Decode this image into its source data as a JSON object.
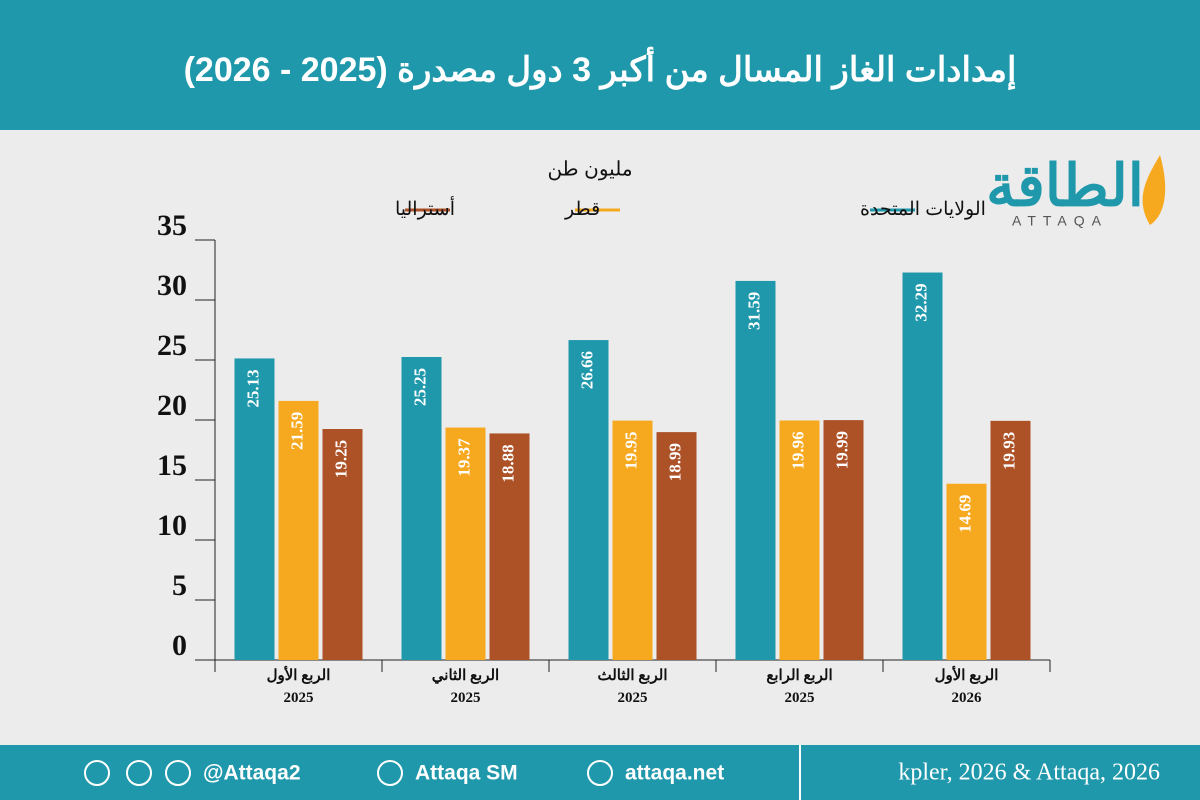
{
  "header": {
    "title": "إمدادات الغاز المسال من أكبر 3 دول مصدرة (2025 - 2026)"
  },
  "logo": {
    "name": "الطاقة",
    "latin": "ATTAQA"
  },
  "chart_data": {
    "type": "bar",
    "y_label": "مليون طن",
    "categories": [
      "الربع الأول\n2025",
      "الربع الثاني\n2025",
      "الربع الثالث\n2025",
      "الربع الرابع\n2025",
      "الربع الأول\n2026"
    ],
    "series": [
      {
        "name": "الولايات المتحدة",
        "color": "#1f98ab",
        "values": [
          25.13,
          25.25,
          26.66,
          31.59,
          32.29
        ]
      },
      {
        "name": "قطر",
        "color": "#f6a91f",
        "values": [
          21.59,
          19.37,
          19.95,
          19.96,
          14.69
        ]
      },
      {
        "name": "أستراليا",
        "color": "#ad5127",
        "values": [
          19.25,
          18.88,
          18.99,
          19.99,
          19.93
        ]
      }
    ],
    "ylim": [
      0,
      35
    ],
    "yticks": [
      0,
      5,
      10,
      15,
      20,
      25,
      30,
      35
    ],
    "legend": "top"
  },
  "footer": {
    "handle": "@Attaqa2",
    "youtube": "Attaqa SM",
    "site": "attaqa.net",
    "source": "kpler, 2026 & Attaqa, 2026"
  }
}
